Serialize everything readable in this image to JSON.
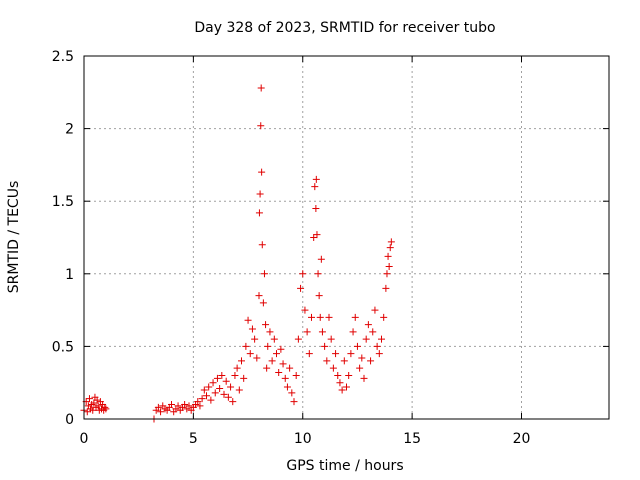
{
  "chart_data": {
    "type": "scatter",
    "title": "Day 328 of 2023, SRMTID for receiver tubo",
    "xlabel": "GPS time / hours",
    "ylabel": "SRMTID / TECUs",
    "xlim": [
      0,
      24
    ],
    "ylim": [
      0,
      2.5
    ],
    "x_ticks": [
      0,
      5,
      10,
      15,
      20
    ],
    "x_tick_labels": [
      "0",
      "5",
      "10",
      "15",
      "20"
    ],
    "y_ticks": [
      0,
      0.5,
      1,
      1.5,
      2,
      2.5
    ],
    "y_tick_labels": [
      "0",
      "0.5",
      "1",
      "1.5",
      "2",
      "2.5"
    ],
    "grid": true,
    "marker": "plus",
    "series": [
      {
        "name": "SRMTID",
        "color": "#e00000",
        "x": [
          0.0,
          0.1,
          0.15,
          0.2,
          0.25,
          0.3,
          0.35,
          0.4,
          0.45,
          0.5,
          0.55,
          0.6,
          0.65,
          0.7,
          0.75,
          0.8,
          0.85,
          0.9,
          0.95,
          1.0,
          3.2,
          3.3,
          3.4,
          3.5,
          3.6,
          3.7,
          3.8,
          3.9,
          4.0,
          4.1,
          4.2,
          4.3,
          4.4,
          4.5,
          4.6,
          4.7,
          4.8,
          4.9,
          5.0,
          5.1,
          5.2,
          5.3,
          5.4,
          5.5,
          5.6,
          5.7,
          5.8,
          5.9,
          6.0,
          6.1,
          6.2,
          6.3,
          6.4,
          6.5,
          6.6,
          6.7,
          6.8,
          6.9,
          7.0,
          7.1,
          7.2,
          7.3,
          7.4,
          7.5,
          7.6,
          7.7,
          7.8,
          7.9,
          8.0,
          8.02,
          8.05,
          8.08,
          8.1,
          8.12,
          8.15,
          8.2,
          8.25,
          8.3,
          8.35,
          8.4,
          8.5,
          8.6,
          8.7,
          8.8,
          8.9,
          9.0,
          9.1,
          9.2,
          9.3,
          9.4,
          9.5,
          9.6,
          9.7,
          9.8,
          9.9,
          10.0,
          10.1,
          10.2,
          10.3,
          10.4,
          10.5,
          10.55,
          10.6,
          10.62,
          10.65,
          10.7,
          10.75,
          10.8,
          10.85,
          10.9,
          11.0,
          11.1,
          11.2,
          11.3,
          11.4,
          11.5,
          11.6,
          11.7,
          11.8,
          11.9,
          12.0,
          12.1,
          12.2,
          12.3,
          12.4,
          12.5,
          12.6,
          12.7,
          12.8,
          12.9,
          13.0,
          13.1,
          13.2,
          13.3,
          13.4,
          13.5,
          13.6,
          13.7,
          13.8,
          13.85,
          13.9,
          13.95,
          14.0,
          14.05
        ],
        "y": [
          0.06,
          0.12,
          0.05,
          0.09,
          0.14,
          0.07,
          0.1,
          0.06,
          0.11,
          0.15,
          0.08,
          0.13,
          0.09,
          0.06,
          0.12,
          0.07,
          0.1,
          0.06,
          0.08,
          0.07,
          0.0,
          0.06,
          0.08,
          0.05,
          0.09,
          0.07,
          0.06,
          0.08,
          0.1,
          0.05,
          0.07,
          0.09,
          0.06,
          0.08,
          0.1,
          0.07,
          0.09,
          0.06,
          0.08,
          0.1,
          0.12,
          0.09,
          0.14,
          0.2,
          0.16,
          0.22,
          0.13,
          0.25,
          0.18,
          0.28,
          0.21,
          0.3,
          0.17,
          0.26,
          0.15,
          0.22,
          0.12,
          0.3,
          0.35,
          0.2,
          0.4,
          0.28,
          0.5,
          0.68,
          0.45,
          0.62,
          0.55,
          0.42,
          0.85,
          1.42,
          1.55,
          2.02,
          2.28,
          1.7,
          1.2,
          0.8,
          1.0,
          0.65,
          0.35,
          0.5,
          0.6,
          0.4,
          0.55,
          0.45,
          0.32,
          0.48,
          0.38,
          0.28,
          0.22,
          0.35,
          0.18,
          0.12,
          0.3,
          0.55,
          0.9,
          1.0,
          0.75,
          0.6,
          0.45,
          0.7,
          1.25,
          1.6,
          1.45,
          1.65,
          1.27,
          1.0,
          0.85,
          0.7,
          1.1,
          0.6,
          0.5,
          0.4,
          0.7,
          0.55,
          0.35,
          0.45,
          0.3,
          0.25,
          0.2,
          0.4,
          0.22,
          0.3,
          0.45,
          0.6,
          0.7,
          0.5,
          0.35,
          0.42,
          0.28,
          0.55,
          0.65,
          0.4,
          0.6,
          0.75,
          0.5,
          0.45,
          0.55,
          0.7,
          0.9,
          1.0,
          1.12,
          1.05,
          1.18,
          1.22
        ]
      }
    ]
  }
}
